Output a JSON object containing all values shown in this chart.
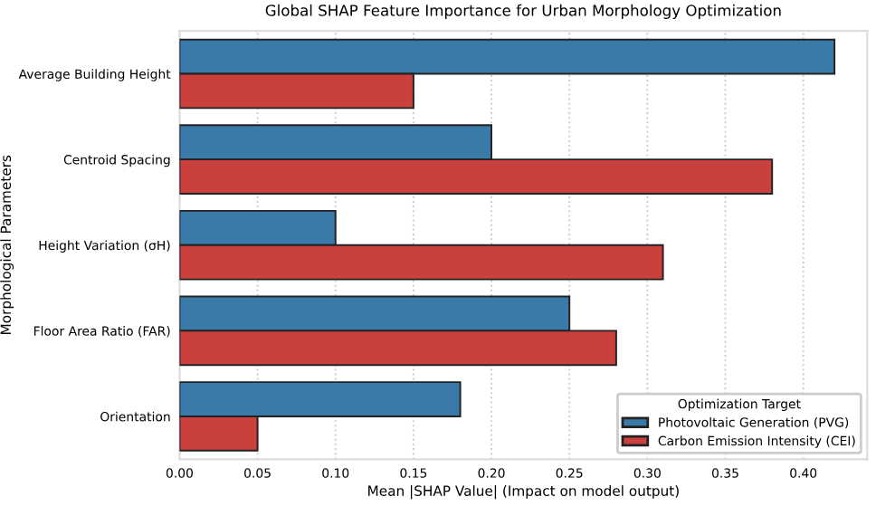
{
  "chart_data": {
    "type": "bar",
    "orientation": "horizontal",
    "title": "Global SHAP Feature Importance for Urban Morphology Optimization",
    "xlabel": "Mean |SHAP Value| (Impact on model output)",
    "ylabel": "Morphological Parameters",
    "legend_title": "Optimization Target",
    "categories": [
      "Average Building Height",
      "Centroid Spacing",
      "Height Variation (σH)",
      "Floor Area Ratio (FAR)",
      "Orientation"
    ],
    "series": [
      {
        "name": "Photovoltaic Generation (PVG)",
        "color": "#3a7aa8",
        "values": [
          0.42,
          0.2,
          0.1,
          0.25,
          0.18
        ]
      },
      {
        "name": "Carbon Emission Intensity (CEI)",
        "color": "#c9403d",
        "values": [
          0.15,
          0.38,
          0.31,
          0.28,
          0.05
        ]
      }
    ],
    "xlim": [
      0,
      0.441
    ],
    "xticks": [
      {
        "value": 0,
        "label": "0.00"
      },
      {
        "value": 0.05,
        "label": "0.05"
      },
      {
        "value": 0.1,
        "label": "0.10"
      },
      {
        "value": 0.15,
        "label": "0.15"
      },
      {
        "value": 0.2,
        "label": "0.20"
      },
      {
        "value": 0.25,
        "label": "0.25"
      },
      {
        "value": 0.3,
        "label": "0.30"
      },
      {
        "value": 0.35,
        "label": "0.35"
      },
      {
        "value": 0.4,
        "label": "0.40"
      }
    ],
    "grid": "x",
    "legend": "bottom right"
  }
}
